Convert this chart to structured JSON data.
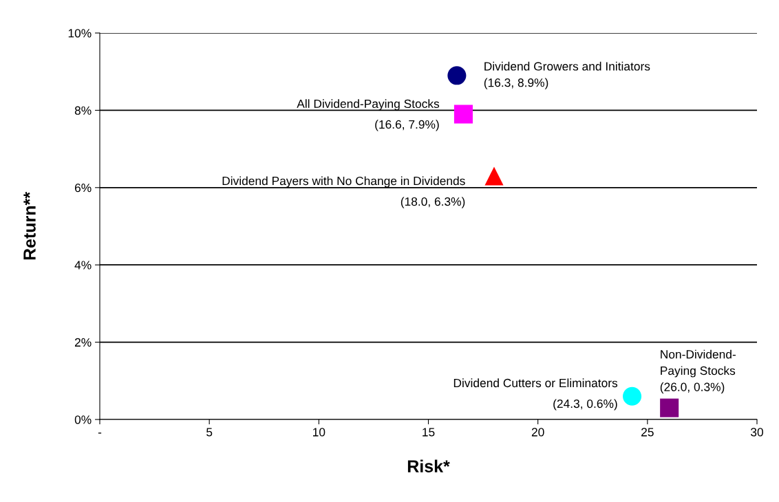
{
  "chart_data": {
    "type": "scatter",
    "xlabel": "Risk*",
    "ylabel": "Return**",
    "xlim": [
      0,
      30
    ],
    "xticks": [
      {
        "value": 0,
        "label": "-"
      },
      5,
      10,
      15,
      20,
      25,
      30
    ],
    "ylim": [
      0,
      10
    ],
    "yticks": [
      {
        "value": 0,
        "label": "0%"
      },
      {
        "value": 2,
        "label": "2%"
      },
      {
        "value": 4,
        "label": "4%"
      },
      {
        "value": 6,
        "label": "6%"
      },
      {
        "value": 8,
        "label": "8%"
      },
      {
        "value": 10,
        "label": "10%"
      }
    ],
    "grid": "y",
    "legend": false,
    "series": [
      {
        "name": "Dividend Growers and Initiators",
        "color": "#000080",
        "marker": "circle",
        "x": [
          16.3
        ],
        "values": [
          8.9
        ],
        "value_labels": [
          "(16.3, 8.9%)"
        ]
      },
      {
        "name": "All Dividend-Paying Stocks",
        "color": "#ff00ff",
        "marker": "square",
        "x": [
          16.6
        ],
        "values": [
          7.9
        ],
        "value_labels": [
          "(16.6, 7.9%)"
        ]
      },
      {
        "name": "Dividend Payers with No Change in Dividends",
        "color": "#ff0000",
        "marker": "triangle",
        "x": [
          18.0
        ],
        "values": [
          6.3
        ],
        "value_labels": [
          "(18.0, 6.3%)"
        ]
      },
      {
        "name": "Dividend Cutters or Eliminators",
        "color": "#00ffff",
        "marker": "circle",
        "x": [
          24.3
        ],
        "values": [
          0.6
        ],
        "value_labels": [
          "(24.3, 0.6%)"
        ]
      },
      {
        "name": "Non-Dividend-\nPaying Stocks",
        "color": "#800080",
        "marker": "square",
        "x": [
          26.0
        ],
        "values": [
          0.3
        ],
        "value_labels": [
          "(26.0, 0.3%)"
        ]
      }
    ]
  }
}
